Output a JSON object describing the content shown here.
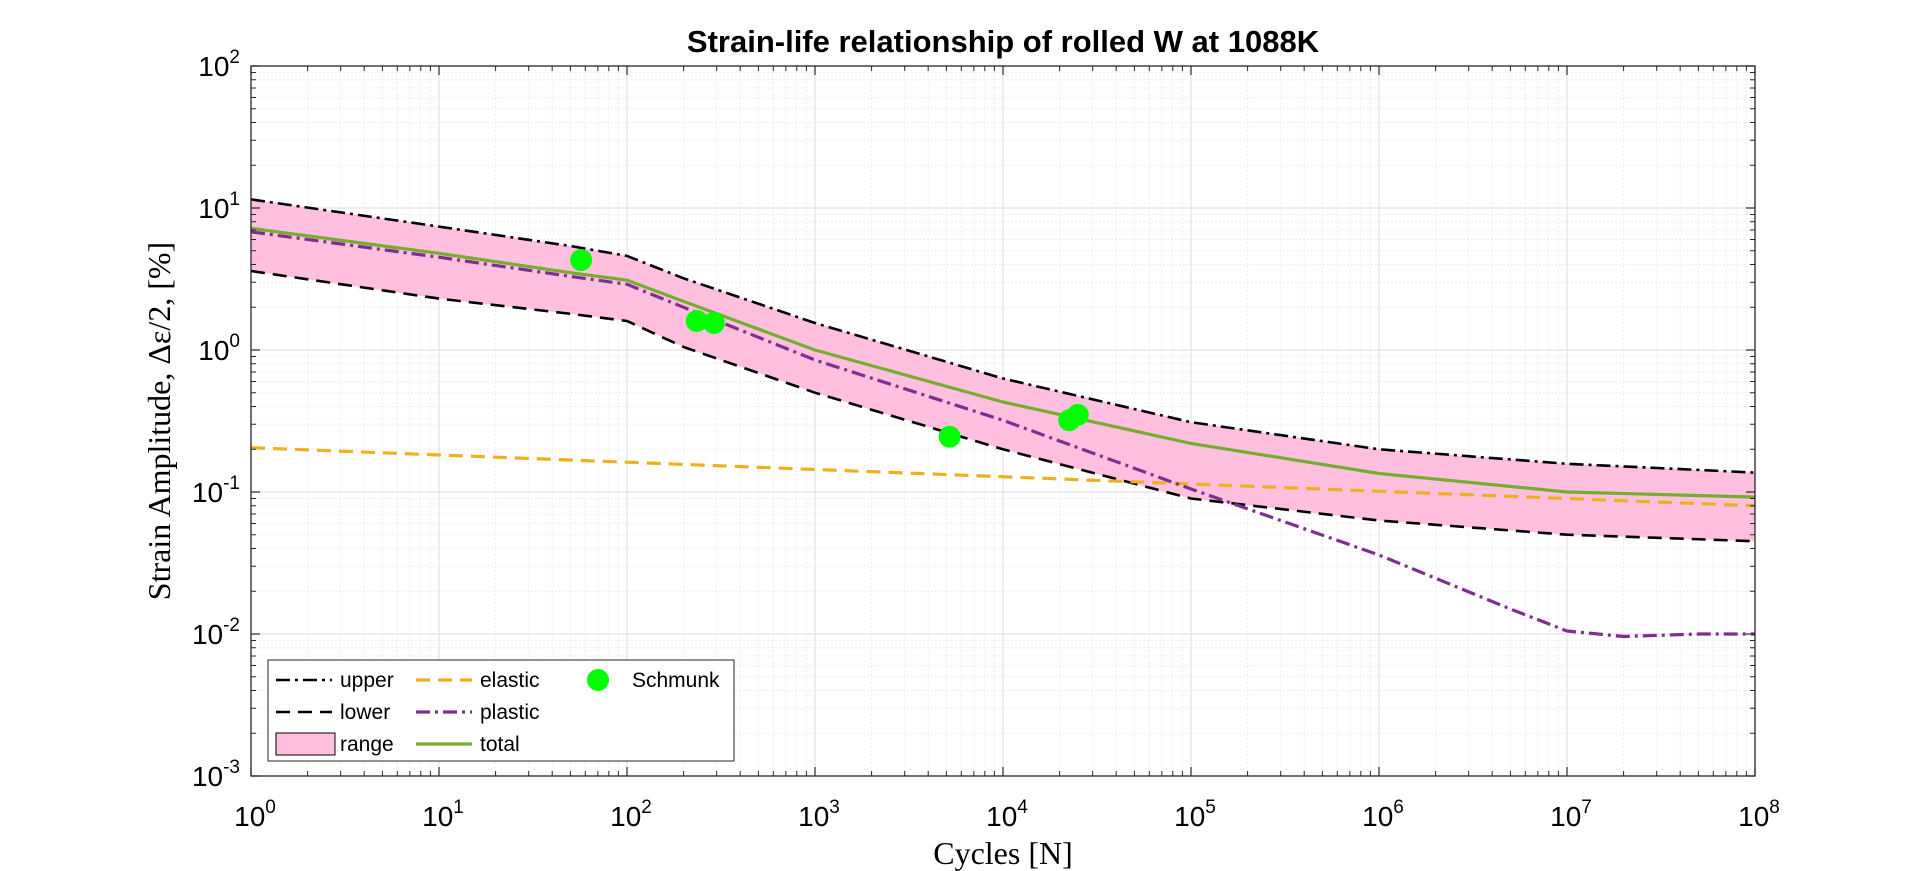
{
  "chart_data": {
    "type": "line",
    "title": "Strain-life relationship of rolled W at 1088K",
    "xlabel": "Cycles [N]",
    "ylabel": "Strain Amplitude, Δε/2, [%]",
    "xscale": "log",
    "yscale": "log",
    "xlim": [
      1,
      100000000
    ],
    "ylim": [
      0.001,
      100
    ],
    "grid": true,
    "legend_position": "bottom-left",
    "x_ticks": [
      {
        "base": "10",
        "exp": "0"
      },
      {
        "base": "10",
        "exp": "1"
      },
      {
        "base": "10",
        "exp": "2"
      },
      {
        "base": "10",
        "exp": "3"
      },
      {
        "base": "10",
        "exp": "4"
      },
      {
        "base": "10",
        "exp": "5"
      },
      {
        "base": "10",
        "exp": "6"
      },
      {
        "base": "10",
        "exp": "7"
      },
      {
        "base": "10",
        "exp": "8"
      }
    ],
    "y_ticks": [
      {
        "base": "10",
        "exp": "-3"
      },
      {
        "base": "10",
        "exp": "-2"
      },
      {
        "base": "10",
        "exp": "-1"
      },
      {
        "base": "10",
        "exp": "0"
      },
      {
        "base": "10",
        "exp": "1"
      },
      {
        "base": "10",
        "exp": "2"
      }
    ],
    "series": [
      {
        "name": "upper",
        "style": "dash-dot",
        "color": "#000000",
        "x": [
          1,
          10,
          50,
          100,
          200,
          1000,
          10000,
          100000,
          1000000,
          10000000,
          100000000
        ],
        "y": [
          11.5,
          7.4,
          5.4,
          4.6,
          3.2,
          1.55,
          0.63,
          0.31,
          0.2,
          0.158,
          0.137
        ]
      },
      {
        "name": "lower",
        "style": "dash",
        "color": "#000000",
        "x": [
          1,
          10,
          50,
          100,
          200,
          1000,
          10000,
          100000,
          1000000,
          10000000,
          100000000
        ],
        "y": [
          3.6,
          2.3,
          1.8,
          1.6,
          1.05,
          0.5,
          0.2,
          0.09,
          0.063,
          0.05,
          0.045
        ]
      },
      {
        "name": "elastic",
        "style": "dash",
        "color": "#EDB120",
        "x": [
          1,
          100000000
        ],
        "y": [
          0.205,
          0.08
        ]
      },
      {
        "name": "plastic",
        "style": "dash-dot",
        "color": "#7E2F8E",
        "x": [
          1,
          10,
          50,
          100,
          200,
          1000,
          10000,
          100000,
          1000000,
          5000000,
          10000000,
          20000000,
          50000000,
          100000000
        ],
        "y": [
          6.8,
          4.5,
          3.3,
          2.9,
          2.0,
          0.85,
          0.32,
          0.105,
          0.036,
          0.015,
          0.0105,
          0.0096,
          0.01,
          0.01
        ]
      },
      {
        "name": "total",
        "style": "solid",
        "color": "#77AC30",
        "x": [
          1,
          10,
          50,
          100,
          200,
          1000,
          10000,
          100000,
          1000000,
          10000000,
          100000000
        ],
        "y": [
          7.2,
          4.8,
          3.5,
          3.1,
          2.2,
          1.0,
          0.43,
          0.22,
          0.135,
          0.1,
          0.092
        ]
      },
      {
        "name": "Schmunk",
        "style": "marker",
        "color": "#00FF00",
        "x": [
          57,
          235,
          290,
          5200,
          22500,
          25000
        ],
        "y": [
          4.3,
          1.6,
          1.55,
          0.245,
          0.32,
          0.35
        ]
      }
    ],
    "range": {
      "name": "range",
      "fill": "#FFC0E0",
      "between": [
        "upper",
        "lower"
      ]
    },
    "legend": {
      "columns": [
        [
          "upper",
          "lower",
          "range"
        ],
        [
          "elastic",
          "plastic",
          "total"
        ],
        [
          "Schmunk"
        ]
      ]
    }
  }
}
